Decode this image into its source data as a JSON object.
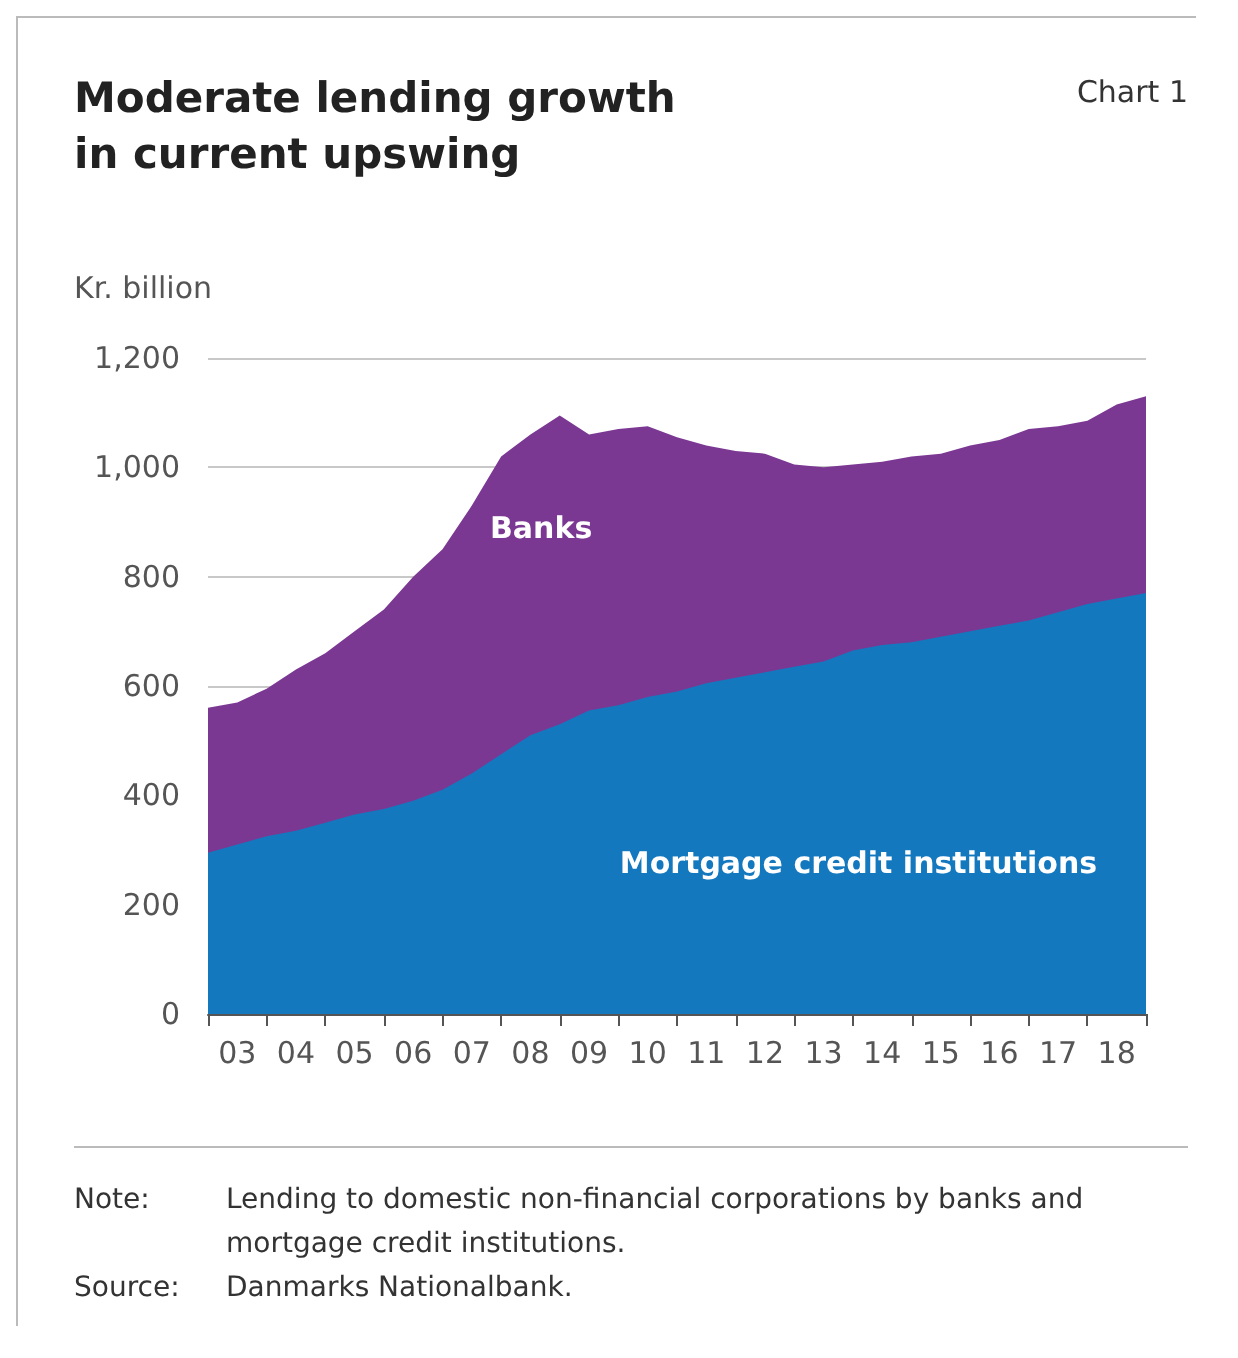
{
  "chart_data": {
    "type": "area",
    "title": "Moderate lending growth in current upswing",
    "subtitle": "Chart 1",
    "ylabel": "Kr. billion",
    "stacked": true,
    "grid": "y",
    "legend": false,
    "marker": "none",
    "categories": [
      null,
      "03",
      null,
      "04",
      null,
      "05",
      null,
      "06",
      null,
      "07",
      null,
      "08",
      null,
      "09",
      null,
      "10",
      null,
      "11",
      null,
      "12",
      null,
      "13",
      null,
      "14",
      null,
      "15",
      null,
      "16",
      null,
      "17",
      null,
      "18",
      null
    ],
    "series": [
      {
        "name": "Mortgage credit institutions",
        "color": "#1478be",
        "values": [
          295,
          310,
          325,
          335,
          350,
          365,
          375,
          390,
          410,
          440,
          475,
          510,
          530,
          555,
          565,
          580,
          590,
          605,
          615,
          625,
          635,
          645,
          665,
          675,
          680,
          690,
          700,
          710,
          720,
          735,
          750,
          760,
          770
        ]
      },
      {
        "name": "Banks",
        "color": "#7b3893",
        "values": [
          265,
          260,
          270,
          295,
          310,
          335,
          365,
          410,
          440,
          490,
          545,
          550,
          565,
          505,
          505,
          495,
          465,
          435,
          415,
          400,
          370,
          355,
          340,
          335,
          340,
          335,
          340,
          340,
          350,
          340,
          335,
          355,
          360
        ]
      }
    ],
    "ylim": [
      0,
      1200
    ],
    "yticks": [
      0,
      200,
      400,
      600,
      800,
      {
        "value": 1000,
        "label": "1,000"
      },
      {
        "value": 1200,
        "label": "1,200"
      }
    ],
    "annotations": [
      "Note:\tLending to domestic non-financial corporations by banks and mortgage credit institutions.",
      "Source:\tDanmarks Nationalbank."
    ]
  }
}
